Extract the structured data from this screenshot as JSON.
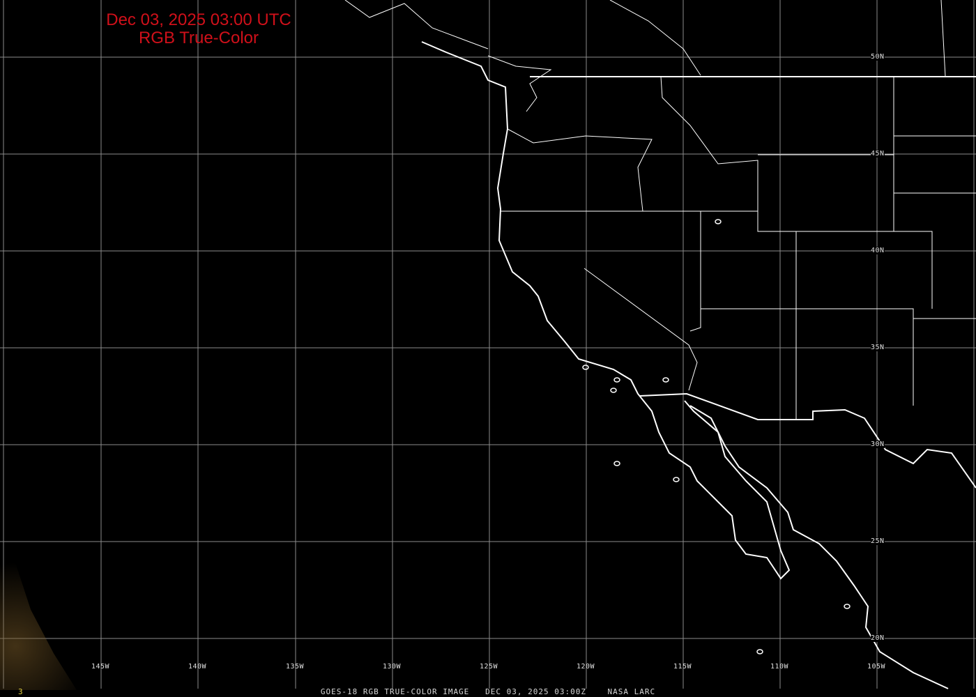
{
  "header": {
    "title_line1": "Dec 03, 2025 03:00 UTC",
    "title_line2": "RGB True-Color"
  },
  "footer": {
    "caption": "GOES-18 RGB TRUE-COLOR IMAGE   DEC 03, 2025 03:00Z    NASA LARC",
    "corner_label": "3"
  },
  "grid": {
    "longitude_labels": [
      "145W",
      "140W",
      "135W",
      "130W",
      "125W",
      "120W",
      "115W",
      "110W",
      "105W"
    ],
    "latitude_labels": [
      "50N",
      "45N",
      "40N",
      "35N",
      "30N",
      "25N",
      "20N"
    ],
    "grid_color": "#8c8c8c",
    "outline_color": "#ffffff",
    "title_color": "#d0101a"
  }
}
